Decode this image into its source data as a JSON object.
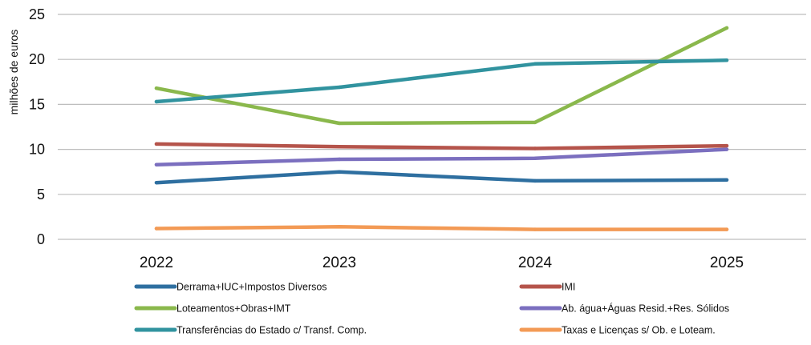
{
  "chart_data": {
    "type": "line",
    "categories": [
      "2022",
      "2023",
      "2024",
      "2025"
    ],
    "ylabel": "milhões de euros",
    "ylim": [
      0,
      25
    ],
    "yticks": [
      0,
      5,
      10,
      15,
      20,
      25
    ],
    "grid": true,
    "legend_position": "bottom",
    "series": [
      {
        "name": "Derrama+IUC+Impostos Diversos",
        "color": "#2e6fa0",
        "values": [
          6.3,
          7.5,
          6.5,
          6.6
        ]
      },
      {
        "name": "IMI",
        "color": "#b5544b",
        "values": [
          10.6,
          10.3,
          10.1,
          10.4
        ]
      },
      {
        "name": "Loteamentos+Obras+IMT",
        "color": "#8ab84c",
        "values": [
          16.8,
          12.9,
          13.0,
          23.5
        ]
      },
      {
        "name": "Ab. água+Águas Resid.+Res. Sólidos",
        "color": "#7b6fbf",
        "values": [
          8.3,
          8.9,
          9.0,
          10.0
        ]
      },
      {
        "name": "Transferências do Estado c/ Transf. Comp.",
        "color": "#31939f",
        "values": [
          15.3,
          16.9,
          19.5,
          19.9
        ]
      },
      {
        "name": "Taxas e Licenças s/ Ob. e Loteam.",
        "color": "#f39a55",
        "values": [
          1.2,
          1.4,
          1.1,
          1.1
        ]
      }
    ]
  }
}
